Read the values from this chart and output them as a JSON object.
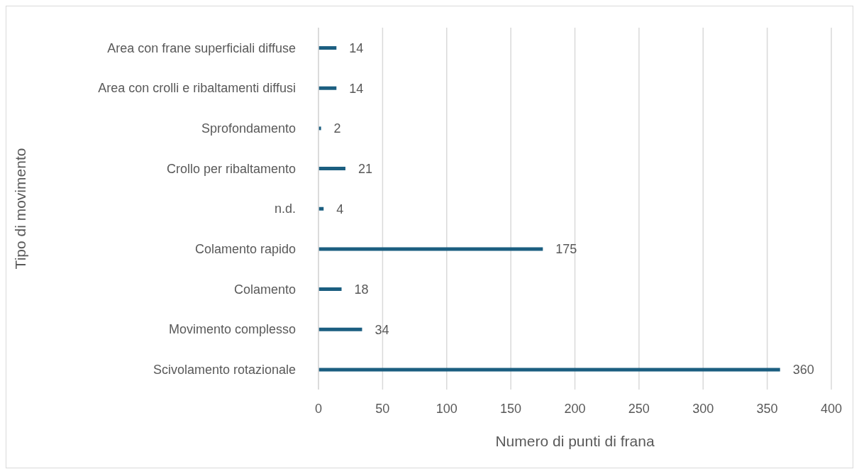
{
  "chart_data": {
    "type": "bar",
    "orientation": "horizontal",
    "xlabel": "Numero di punti di frana",
    "ylabel": "Tipo di movimento",
    "categories": [
      "Area con frane superficiali diffuse",
      "Area con crolli e ribaltamenti diffusi",
      "Sprofondamento",
      "Crollo per ribaltamento",
      "n.d.",
      "Colamento rapido",
      "Colamento",
      "Movimento complesso",
      "Scivolamento rotazionale"
    ],
    "values": [
      14,
      14,
      2,
      21,
      4,
      175,
      18,
      34,
      360
    ],
    "color": "#1b5e80",
    "xlim": [
      0,
      400
    ],
    "xticks": [
      0,
      50,
      100,
      150,
      200,
      250,
      300,
      350,
      400
    ],
    "grid": "x",
    "data_labels": true
  }
}
